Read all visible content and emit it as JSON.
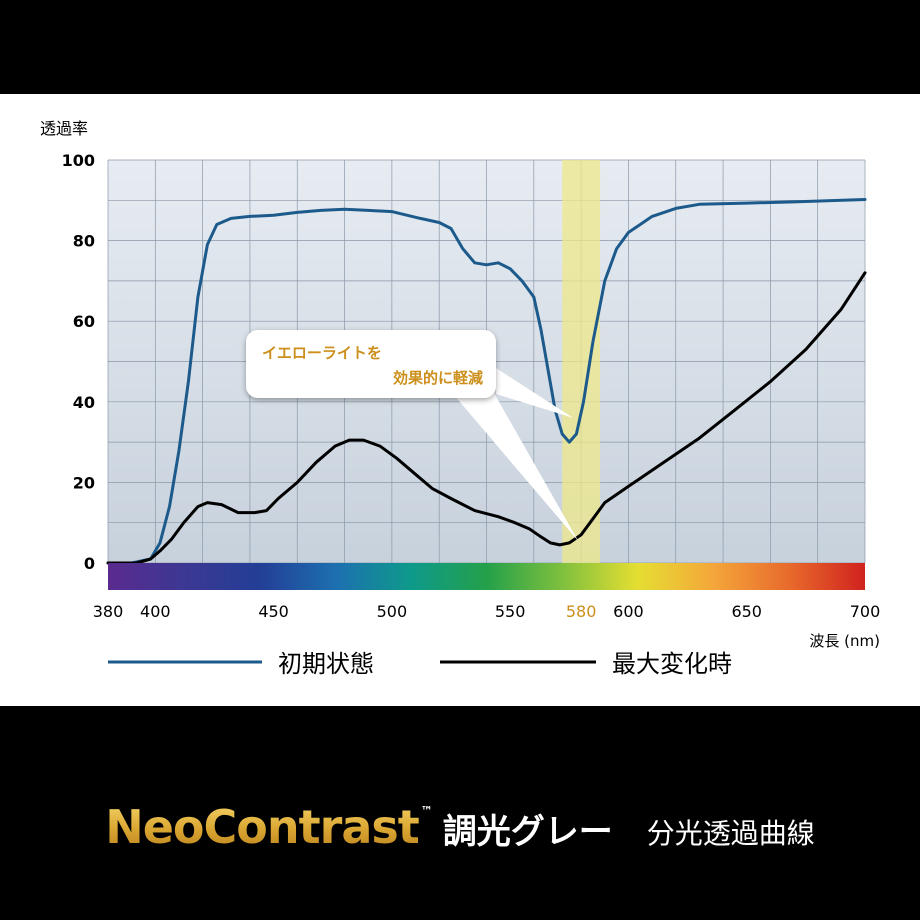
{
  "chart_data": {
    "type": "line",
    "ylabel": "透過率",
    "xlabel": "波長 (nm)",
    "xlim": [
      380,
      700
    ],
    "ylim": [
      0,
      100
    ],
    "x_ticks": [
      380,
      400,
      450,
      500,
      550,
      580,
      600,
      650,
      700
    ],
    "y_ticks": [
      0,
      20,
      40,
      60,
      80,
      100
    ],
    "highlight_tick": 580,
    "highlight_band": [
      572,
      588
    ],
    "grid": true,
    "legend_position": "bottom",
    "series": [
      {
        "name": "初期状態",
        "color": "#1d5a8c",
        "points": [
          [
            380,
            0
          ],
          [
            390,
            0
          ],
          [
            398,
            1
          ],
          [
            402,
            5
          ],
          [
            406,
            14
          ],
          [
            410,
            28
          ],
          [
            414,
            45
          ],
          [
            418,
            66
          ],
          [
            422,
            79
          ],
          [
            426,
            84
          ],
          [
            432,
            85.5
          ],
          [
            440,
            86
          ],
          [
            450,
            86.3
          ],
          [
            460,
            87
          ],
          [
            470,
            87.5
          ],
          [
            480,
            87.8
          ],
          [
            490,
            87.5
          ],
          [
            500,
            87.2
          ],
          [
            505,
            86.5
          ],
          [
            512,
            85.5
          ],
          [
            520,
            84.5
          ],
          [
            525,
            83
          ],
          [
            530,
            78
          ],
          [
            535,
            74.5
          ],
          [
            540,
            74
          ],
          [
            545,
            74.5
          ],
          [
            550,
            73
          ],
          [
            555,
            70
          ],
          [
            560,
            66
          ],
          [
            563,
            58
          ],
          [
            566,
            48
          ],
          [
            569,
            38
          ],
          [
            572,
            32
          ],
          [
            575,
            30
          ],
          [
            578,
            32
          ],
          [
            581,
            40
          ],
          [
            585,
            55
          ],
          [
            590,
            70
          ],
          [
            595,
            78
          ],
          [
            600,
            82
          ],
          [
            610,
            86
          ],
          [
            620,
            88
          ],
          [
            630,
            89
          ],
          [
            650,
            89.3
          ],
          [
            670,
            89.6
          ],
          [
            700,
            90.2
          ]
        ]
      },
      {
        "name": "最大変化時",
        "color": "#000000",
        "points": [
          [
            380,
            0
          ],
          [
            392,
            0
          ],
          [
            398,
            1
          ],
          [
            402,
            3
          ],
          [
            407,
            6
          ],
          [
            412,
            10
          ],
          [
            418,
            14
          ],
          [
            422,
            15
          ],
          [
            428,
            14.5
          ],
          [
            435,
            12.5
          ],
          [
            442,
            12.5
          ],
          [
            447,
            13
          ],
          [
            452,
            16
          ],
          [
            460,
            20
          ],
          [
            468,
            25
          ],
          [
            476,
            29
          ],
          [
            482,
            30.5
          ],
          [
            488,
            30.5
          ],
          [
            495,
            29
          ],
          [
            502,
            26
          ],
          [
            510,
            22
          ],
          [
            517,
            18.5
          ],
          [
            525,
            16
          ],
          [
            535,
            13
          ],
          [
            545,
            11.5
          ],
          [
            552,
            10
          ],
          [
            558,
            8.5
          ],
          [
            563,
            6.5
          ],
          [
            567,
            5
          ],
          [
            571,
            4.5
          ],
          [
            575,
            5
          ],
          [
            580,
            7
          ],
          [
            585,
            11
          ],
          [
            590,
            15
          ],
          [
            600,
            19
          ],
          [
            615,
            25
          ],
          [
            630,
            31
          ],
          [
            645,
            38
          ],
          [
            660,
            45
          ],
          [
            675,
            53
          ],
          [
            690,
            63
          ],
          [
            700,
            72
          ]
        ]
      }
    ],
    "spectrum_colors": [
      "#5a2a8f",
      "#3c3893",
      "#233e96",
      "#1d6fb0",
      "#0e9a8b",
      "#24a04a",
      "#7fc03e",
      "#e5de32",
      "#f4a63a",
      "#e86a2c",
      "#d0221e"
    ],
    "annotation": {
      "line1": "イエローライトを",
      "line2": "効果的に軽減",
      "color": "#cc8f1c"
    }
  },
  "footer": {
    "brand": "NeoContrast",
    "trademark": "™",
    "subtitle": "調光グレー",
    "description": "分光透過曲線"
  }
}
